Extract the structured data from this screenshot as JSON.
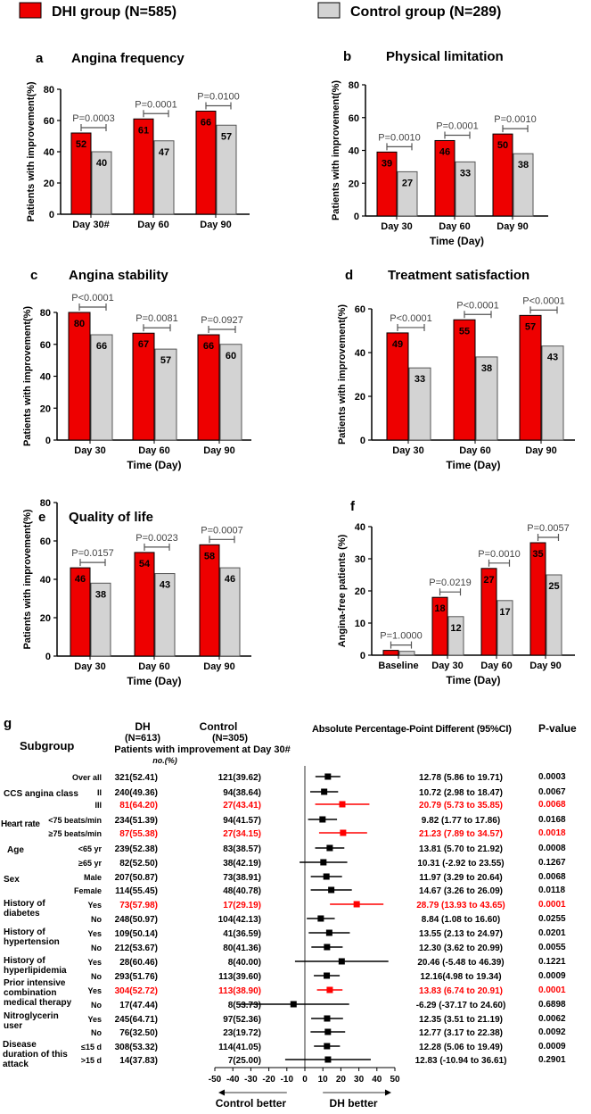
{
  "colors": {
    "dhi": "#ee0000",
    "control": "#d3d3d3",
    "highlight": "#ff0000",
    "ink": "#000000",
    "pline": "#555555"
  },
  "legend": {
    "dhi": "DHI group (N=585)",
    "control": "Control group (N=289)"
  },
  "chart_data": [
    {
      "id": "a",
      "type": "bar",
      "letter": "a",
      "title": "Angina frequency",
      "ylabel": "Patients with improvement(%)",
      "xlabel": "",
      "categories": [
        "Day 30#",
        "Day 60",
        "Day 90"
      ],
      "ylim": [
        0,
        80
      ],
      "yticks": [
        "0",
        "20",
        "40",
        "60",
        "80"
      ],
      "series": [
        {
          "name": "DHI group",
          "values": [
            52,
            61,
            66
          ]
        },
        {
          "name": "Control group",
          "values": [
            40,
            47,
            57
          ]
        }
      ],
      "bar_labels": {
        "dhi": [
          "52",
          "61",
          "66"
        ],
        "control": [
          "40",
          "47",
          "57"
        ]
      },
      "pvalues": [
        "P=0.0003",
        "P=0.0001",
        "P=0.0100"
      ]
    },
    {
      "id": "b",
      "type": "bar",
      "letter": "b",
      "title": "Physical limitation",
      "ylabel": "Patients with improvement(%)",
      "xlabel": "Time (Day)",
      "categories": [
        "Day 30",
        "Day 60",
        "Day 90"
      ],
      "ylim": [
        0,
        80
      ],
      "yticks": [
        "0",
        "20",
        "40",
        "60",
        "80"
      ],
      "series": [
        {
          "name": "DHI group",
          "values": [
            39,
            46,
            50
          ]
        },
        {
          "name": "Control group",
          "values": [
            27,
            33,
            38
          ]
        }
      ],
      "bar_labels": {
        "dhi": [
          "39",
          "46",
          "50"
        ],
        "control": [
          "27",
          "33",
          "38"
        ]
      },
      "pvalues": [
        "P=0.0010",
        "P=0.0001",
        "P=0.0010"
      ]
    },
    {
      "id": "c",
      "type": "bar",
      "letter": "c",
      "title": "Angina stability",
      "ylabel": "Patients with improvement(%)",
      "xlabel": "Time (Day)",
      "categories": [
        "Day 30",
        "Day 60",
        "Day 90"
      ],
      "ylim": [
        0,
        80
      ],
      "yticks": [
        "0",
        "20",
        "40",
        "60",
        "80"
      ],
      "series": [
        {
          "name": "DHI group",
          "values": [
            80,
            67,
            66
          ]
        },
        {
          "name": "Control group",
          "values": [
            66,
            57,
            60
          ]
        }
      ],
      "bar_labels": {
        "dhi": [
          "80",
          "67",
          "66"
        ],
        "control": [
          "66",
          "57",
          "60"
        ]
      },
      "pvalues": [
        "P<0.0001",
        "P=0.0081",
        "P=0.0927"
      ]
    },
    {
      "id": "d",
      "type": "bar",
      "letter": "d",
      "title": "Treatment satisfaction",
      "ylabel": "Patients with improvement(%)",
      "xlabel": "Time (Day)",
      "categories": [
        "Day 30",
        "Day 60",
        "Day 90"
      ],
      "ylim": [
        0,
        60
      ],
      "yticks": [
        "0",
        "20",
        "40",
        "60"
      ],
      "series": [
        {
          "name": "DHI group",
          "values": [
            49,
            55,
            57
          ]
        },
        {
          "name": "Control group",
          "values": [
            33,
            38,
            43
          ]
        }
      ],
      "bar_labels": {
        "dhi": [
          "49",
          "55",
          "57"
        ],
        "control": [
          "33",
          "38",
          "43"
        ]
      },
      "pvalues": [
        "P<0.0001",
        "P<0.0001",
        "P<0.0001"
      ]
    },
    {
      "id": "e",
      "type": "bar",
      "letter": "e",
      "title": "Quality of life",
      "ylabel": "Patients with improvement(%)",
      "xlabel": "Time (Day)",
      "categories": [
        "Day 30",
        "Day 60",
        "Day 90"
      ],
      "ylim": [
        0,
        80
      ],
      "yticks": [
        "0",
        "20",
        "40",
        "60",
        "80"
      ],
      "series": [
        {
          "name": "DHI group",
          "values": [
            46,
            54,
            58
          ]
        },
        {
          "name": "Control group",
          "values": [
            38,
            43,
            46
          ]
        }
      ],
      "bar_labels": {
        "dhi": [
          "46",
          "54",
          "58"
        ],
        "control": [
          "38",
          "43",
          "46"
        ]
      },
      "pvalues": [
        "P=0.0157",
        "P=0.0023",
        "P=0.0007"
      ]
    },
    {
      "id": "f",
      "type": "bar",
      "letter": "f",
      "title": "",
      "ylabel": "Angina-free patients (%)",
      "xlabel": "Time (Day)",
      "categories": [
        "Baseline",
        "Day 30",
        "Day 60",
        "Day 90"
      ],
      "ylim": [
        0,
        40
      ],
      "yticks": [
        "0",
        "10",
        "20",
        "30",
        "40"
      ],
      "series": [
        {
          "name": "DHI group",
          "values": [
            1.5,
            18,
            27,
            35
          ]
        },
        {
          "name": "Control group",
          "values": [
            1.2,
            12,
            17,
            25
          ]
        }
      ],
      "bar_labels": {
        "dhi": [
          "",
          "18",
          "27",
          "35"
        ],
        "control": [
          "",
          "12",
          "17",
          "25"
        ]
      },
      "pvalues": [
        "P=1.0000",
        "P=0.0219",
        "P=0.0010",
        "P=0.0057"
      ]
    },
    {
      "id": "g",
      "type": "forest",
      "letter": "g",
      "headers": {
        "subgroup": "Subgroup",
        "dh": "DH",
        "dh_n": "(N=613)",
        "control": "Control",
        "control_n": "(N=305)",
        "patients": "Patients with improvement at Day 30#",
        "unit": "no.(%)",
        "diff": "Absolute Percentage-Point Different (95%CI)",
        "p": "P-value"
      },
      "xlim": [
        -50,
        50
      ],
      "xticks": [
        "-50",
        "-40",
        "-30",
        "-20",
        "-10",
        "0",
        "10",
        "20",
        "30",
        "40",
        "50"
      ],
      "xlabel_left": "Control   better",
      "xlabel_right": "DH   better",
      "groups": [
        {
          "lines": [
            "CCS  angina class"
          ]
        },
        {
          "lines": [
            "Heart rate"
          ]
        },
        {
          "lines": [
            "Age"
          ]
        },
        {
          "lines": [
            "Sex"
          ]
        },
        {
          "lines": [
            "History of",
            "diabetes"
          ]
        },
        {
          "lines": [
            "History of",
            "hypertension"
          ]
        },
        {
          "lines": [
            "History of",
            "hyperlipidemia"
          ]
        },
        {
          "lines": [
            "Prior intensive",
            "combination",
            "medical therapy"
          ]
        },
        {
          "lines": [
            "Nitroglycerin",
            "user"
          ]
        },
        {
          "lines": [
            "Disease",
            "duration of this",
            "attack"
          ]
        }
      ],
      "rows": [
        {
          "label": "Over all",
          "dh": "321(52.41)",
          "control": "121(39.62)",
          "est": 12.78,
          "lo": 5.86,
          "hi": 19.71,
          "ci": "12.78 (5.86 to 19.71)",
          "p": "0.0003",
          "sig": false
        },
        {
          "label": "II",
          "dh": "240(49.36)",
          "control": "94(38.64)",
          "est": 10.72,
          "lo": 2.98,
          "hi": 18.47,
          "ci": "10.72 (2.98  to 18.47)",
          "p": "0.0067",
          "sig": false
        },
        {
          "label": "III",
          "dh": "81(64.20)",
          "control": "27(43.41)",
          "est": 20.79,
          "lo": 5.73,
          "hi": 35.85,
          "ci": "20.79 (5.73 to 35.85)",
          "p": "0.0068",
          "sig": true
        },
        {
          "label": "<75 beats/min",
          "dh": "234(51.39)",
          "control": "94(41.57)",
          "est": 9.82,
          "lo": 1.77,
          "hi": 17.86,
          "ci": "9.82 (1.77 to 17.86)",
          "p": "0.0168",
          "sig": false
        },
        {
          "label": "≥75 beats/min",
          "dh": "87(55.38)",
          "control": "27(34.15)",
          "est": 21.23,
          "lo": 7.89,
          "hi": 34.57,
          "ci": "21.23 (7.89 to 34.57)",
          "p": "0.0018",
          "sig": true
        },
        {
          "label": "<65 yr",
          "dh": "239(52.38)",
          "control": "83(38.57)",
          "est": 13.81,
          "lo": 5.7,
          "hi": 21.92,
          "ci": "13.81 (5.70 to 21.92)",
          "p": "0.0008",
          "sig": false
        },
        {
          "label": "≥65 yr",
          "dh": "82(52.50)",
          "control": "38(42.19)",
          "est": 10.31,
          "lo": -2.92,
          "hi": 23.55,
          "ci": "10.31 (-2.92 to 23.55)",
          "p": "0.1267",
          "sig": false
        },
        {
          "label": "Male",
          "dh": "207(50.87)",
          "control": "73(38.91)",
          "est": 11.97,
          "lo": 3.29,
          "hi": 20.64,
          "ci": "11.97 (3.29 to 20.64)",
          "p": "0.0068",
          "sig": false
        },
        {
          "label": "Female",
          "dh": "114(55.45)",
          "control": "48(40.78)",
          "est": 14.67,
          "lo": 3.26,
          "hi": 26.09,
          "ci": "14.67 (3.26 to 26.09)",
          "p": "0.0118",
          "sig": false
        },
        {
          "label": "Yes",
          "dh": "73(57.98)",
          "control": "17(29.19)",
          "est": 28.79,
          "lo": 13.93,
          "hi": 43.65,
          "ci": "28.79 (13.93 to 43.65)",
          "p": "0.0001",
          "sig": true
        },
        {
          "label": "No",
          "dh": "248(50.97)",
          "control": "104(42.13)",
          "est": 8.84,
          "lo": 1.08,
          "hi": 16.6,
          "ci": "8.84 (1.08 to 16.60)",
          "p": "0.0255",
          "sig": false
        },
        {
          "label": "Yes",
          "dh": "109(50.14)",
          "control": "41(36.59)",
          "est": 13.55,
          "lo": 2.13,
          "hi": 24.97,
          "ci": "13.55 (2.13 to 24.97)",
          "p": "0.0201",
          "sig": false
        },
        {
          "label": "No",
          "dh": "212(53.67)",
          "control": "80(41.36)",
          "est": 12.3,
          "lo": 3.62,
          "hi": 20.99,
          "ci": "12.30 (3.62 to 20.99)",
          "p": "0.0055",
          "sig": false
        },
        {
          "label": "Yes",
          "dh": "28(60.46)",
          "control": "8(40.00)",
          "est": 20.46,
          "lo": -5.48,
          "hi": 46.39,
          "ci": "20.46 (-5.48 to 46.39)",
          "p": "0.1221",
          "sig": false
        },
        {
          "label": "No",
          "dh": "293(51.76)",
          "control": "113(39.60)",
          "est": 12.16,
          "lo": 4.98,
          "hi": 19.34,
          "ci": "12.16(4.98 to 19.34)",
          "p": "0.0009",
          "sig": false
        },
        {
          "label": "Yes",
          "dh": "304(52.72)",
          "control": "113(38.90)",
          "est": 13.83,
          "lo": 6.74,
          "hi": 20.91,
          "ci": "13.83 (6.74 to 20.91)",
          "p": "0.0001",
          "sig": true
        },
        {
          "label": "No",
          "dh": "17(47.44)",
          "control": "8(53.73)",
          "est": -6.29,
          "lo": -37.17,
          "hi": 24.6,
          "ci": "-6.29 (-37.17 to 24.60)",
          "p": "0.6898",
          "sig": false
        },
        {
          "label": "Yes",
          "dh": "245(64.71)",
          "control": "97(52.36)",
          "est": 12.35,
          "lo": 3.51,
          "hi": 21.19,
          "ci": "12.35 (3.51 to 21.19)",
          "p": "0.0062",
          "sig": false
        },
        {
          "label": "No",
          "dh": "76(32.50)",
          "control": "23(19.72)",
          "est": 12.77,
          "lo": 3.17,
          "hi": 22.38,
          "ci": "12.77 (3.17 to 22.38)",
          "p": "0.0092",
          "sig": false
        },
        {
          "label": "≤15 d",
          "dh": "308(53.32)",
          "control": "114(41.05)",
          "est": 12.28,
          "lo": 5.06,
          "hi": 19.49,
          "ci": "12.28 (5.06 to 19.49)",
          "p": "0.0009",
          "sig": false
        },
        {
          "label": ">15 d",
          "dh": "14(37.83)",
          "control": "7(25.00)",
          "est": 12.83,
          "lo": -10.94,
          "hi": 36.61,
          "ci": "12.83 (-10.94 to 36.61)",
          "p": "0.2901",
          "sig": false
        }
      ]
    }
  ]
}
